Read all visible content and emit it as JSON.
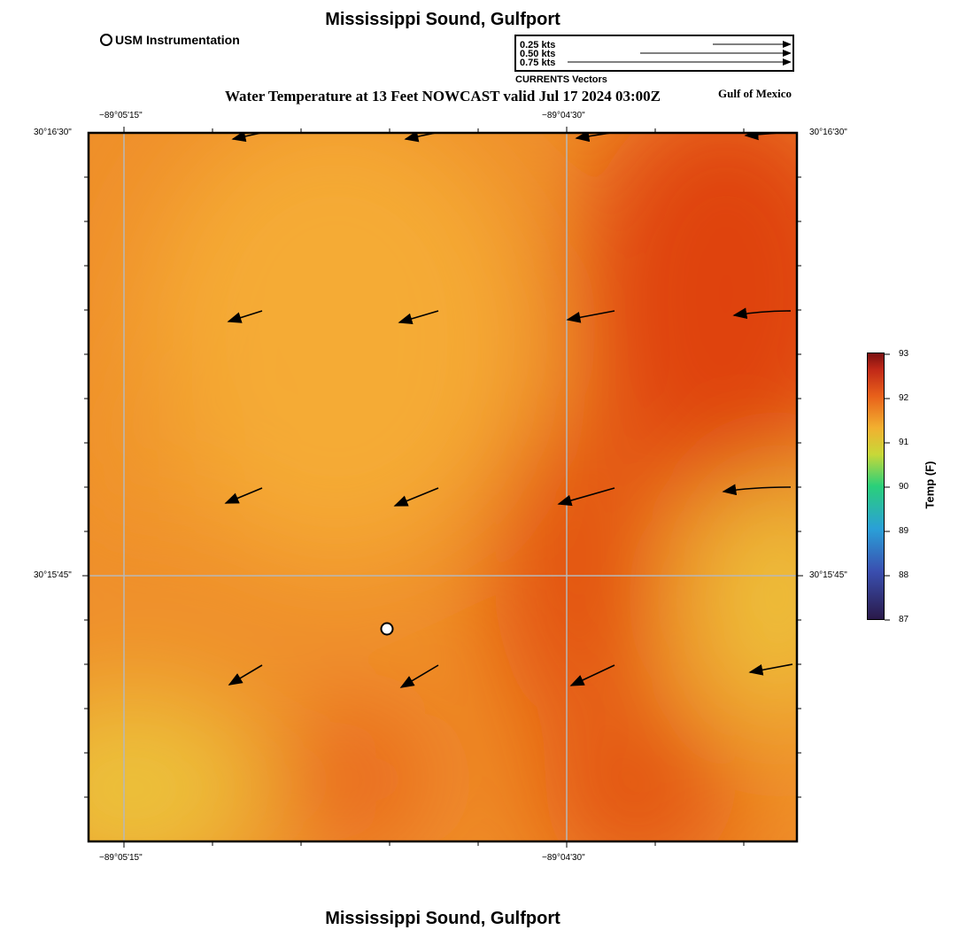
{
  "header": {
    "title": "Mississippi Sound, Gulfport",
    "subtitle": "Water Temperature at 13 Feet NOWCAST valid Jul 17 2024 03:00Z",
    "region_label": "Gulf of Mexico"
  },
  "footer": {
    "title": "Mississippi Sound, Gulfport"
  },
  "legend": {
    "station_label": "USM Instrumentation",
    "vector_scale": [
      {
        "label": "0.25 kts",
        "speed_kts": 0.25
      },
      {
        "label": "0.50 kts",
        "speed_kts": 0.5
      },
      {
        "label": "0.75 kts",
        "speed_kts": 0.75
      }
    ],
    "vector_caption": "CURRENTS Vectors"
  },
  "map": {
    "lon_ticks": [
      "−89°05'15\"",
      "−89°04'30\""
    ],
    "lat_ticks": [
      "30°16'30\"",
      "30°15'45\""
    ],
    "colors": {
      "warm": "#f3a531",
      "hot": "#e2480f",
      "cool": "#ecc23a",
      "land_border": "#000000"
    }
  },
  "colorbar": {
    "label": "Temp (F)",
    "ticks": [
      "93",
      "92",
      "91",
      "90",
      "89",
      "88",
      "87"
    ]
  }
}
